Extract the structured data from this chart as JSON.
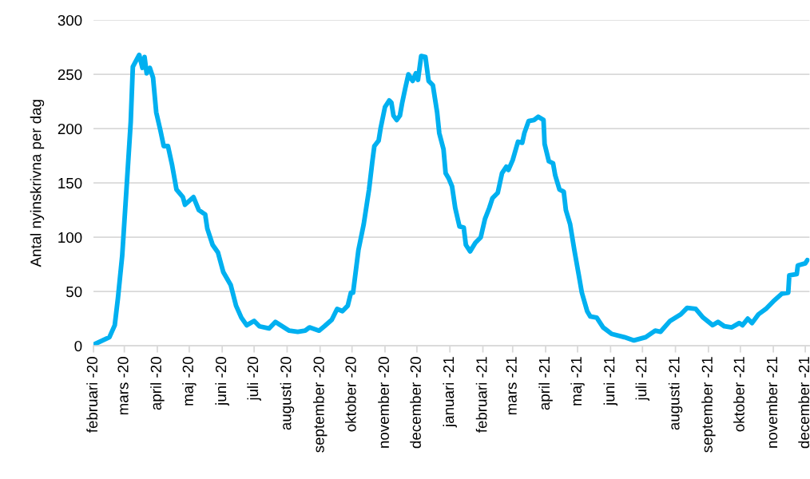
{
  "chart_data": {
    "type": "line",
    "ylabel": "Antal nyinskrivna per dag",
    "x": [
      "2020-02-01",
      "2020-02-16",
      "2020-02-21",
      "2020-02-24",
      "2020-02-28",
      "2020-03-03",
      "2020-03-07",
      "2020-03-09",
      "2020-03-15",
      "2020-03-18",
      "2020-03-20",
      "2020-03-22",
      "2020-03-25",
      "2020-03-28",
      "2020-03-31",
      "2020-04-04",
      "2020-04-07",
      "2020-04-11",
      "2020-04-15",
      "2020-04-19",
      "2020-04-25",
      "2020-04-27",
      "2020-05-05",
      "2020-05-10",
      "2020-05-16",
      "2020-05-18",
      "2020-05-23",
      "2020-05-28",
      "2020-06-02",
      "2020-06-09",
      "2020-06-14",
      "2020-06-19",
      "2020-06-24",
      "2020-07-01",
      "2020-07-06",
      "2020-07-15",
      "2020-07-21",
      "2020-08-03",
      "2020-08-11",
      "2020-08-18",
      "2020-08-22",
      "2020-08-31",
      "2020-09-05",
      "2020-09-12",
      "2020-09-17",
      "2020-09-22",
      "2020-09-27",
      "2020-09-30",
      "2020-10-02",
      "2020-10-07",
      "2020-10-12",
      "2020-10-17",
      "2020-10-20",
      "2020-10-22",
      "2020-10-26",
      "2020-10-28",
      "2020-11-01",
      "2020-11-05",
      "2020-11-07",
      "2020-11-09",
      "2020-11-12",
      "2020-11-15",
      "2020-11-17",
      "2020-11-20",
      "2020-11-23",
      "2020-11-27",
      "2020-11-30",
      "2020-12-02",
      "2020-12-05",
      "2020-12-09",
      "2020-12-12",
      "2020-12-16",
      "2020-12-20",
      "2020-12-22",
      "2020-12-26",
      "2020-12-28",
      "2020-12-31",
      "2021-01-03",
      "2021-01-06",
      "2021-01-10",
      "2021-01-14",
      "2021-01-16",
      "2021-01-20",
      "2021-01-25",
      "2021-01-30",
      "2021-02-03",
      "2021-02-07",
      "2021-02-10",
      "2021-02-15",
      "2021-02-19",
      "2021-02-23",
      "2021-02-25",
      "2021-03-01",
      "2021-03-06",
      "2021-03-10",
      "2021-03-12",
      "2021-03-16",
      "2021-03-21",
      "2021-03-25",
      "2021-03-30",
      "2021-03-31",
      "2021-04-04",
      "2021-04-08",
      "2021-04-10",
      "2021-04-14",
      "2021-04-18",
      "2021-04-20",
      "2021-04-24",
      "2021-04-28",
      "2021-05-02",
      "2021-05-05",
      "2021-05-10",
      "2021-05-13",
      "2021-05-19",
      "2021-05-25",
      "2021-06-02",
      "2021-06-14",
      "2021-06-23",
      "2021-07-04",
      "2021-07-13",
      "2021-07-18",
      "2021-07-27",
      "2021-08-06",
      "2021-08-12",
      "2021-08-20",
      "2021-08-27",
      "2021-09-05",
      "2021-09-10",
      "2021-09-16",
      "2021-09-23",
      "2021-09-30",
      "2021-10-03",
      "2021-10-08",
      "2021-10-12",
      "2021-10-18",
      "2021-10-25",
      "2021-11-01",
      "2021-11-09",
      "2021-11-15",
      "2021-11-16",
      "2021-11-23",
      "2021-11-24",
      "2021-12-01",
      "2021-12-03"
    ],
    "series": [
      {
        "color": "#00b0f0",
        "values": [
          1,
          8,
          19,
          44,
          83,
          144,
          206,
          257,
          268,
          256,
          266,
          251,
          256,
          247,
          215,
          198,
          184,
          184,
          166,
          144,
          137,
          130,
          137,
          125,
          121,
          108,
          93,
          86,
          68,
          56,
          37,
          26,
          19,
          23,
          18,
          16,
          22,
          14,
          13,
          14,
          17,
          14,
          18,
          24,
          34,
          32,
          37,
          49,
          49,
          88,
          112,
          144,
          169,
          184,
          189,
          201,
          220,
          226,
          224,
          212,
          208,
          212,
          223,
          237,
          250,
          244,
          251,
          245,
          267,
          266,
          244,
          240,
          215,
          196,
          181,
          159,
          154,
          147,
          127,
          110,
          109,
          93,
          87,
          95,
          100,
          117,
          127,
          136,
          141,
          159,
          165,
          162,
          171,
          188,
          187,
          196,
          207,
          208,
          211,
          208,
          186,
          170,
          168,
          157,
          144,
          142,
          125,
          112,
          88,
          66,
          49,
          32,
          27,
          26,
          17,
          11,
          8,
          5,
          8,
          14,
          13,
          23,
          29,
          35,
          34,
          26,
          19,
          22,
          18,
          17,
          21,
          19,
          25,
          21,
          29,
          34,
          41,
          48,
          49,
          65,
          66,
          74,
          76,
          79
        ]
      }
    ],
    "xlim": [
      "2020-02-01",
      "2021-12-05"
    ],
    "xticks": [
      {
        "value": "2020-02-01",
        "label": "februari -20"
      },
      {
        "value": "2020-03-01",
        "label": "mars -20"
      },
      {
        "value": "2020-04-01",
        "label": "april -20"
      },
      {
        "value": "2020-05-01",
        "label": "maj -20"
      },
      {
        "value": "2020-06-01",
        "label": "juni -20"
      },
      {
        "value": "2020-07-01",
        "label": "juli -20"
      },
      {
        "value": "2020-08-01",
        "label": "augusti -20"
      },
      {
        "value": "2020-09-01",
        "label": "september -20"
      },
      {
        "value": "2020-10-01",
        "label": "oktober -20"
      },
      {
        "value": "2020-11-01",
        "label": "november -20"
      },
      {
        "value": "2020-12-01",
        "label": "december -20"
      },
      {
        "value": "2021-01-01",
        "label": "januari -21"
      },
      {
        "value": "2021-02-01",
        "label": "februari -21"
      },
      {
        "value": "2021-03-01",
        "label": "mars -21"
      },
      {
        "value": "2021-04-01",
        "label": "april -21"
      },
      {
        "value": "2021-05-01",
        "label": "maj -21"
      },
      {
        "value": "2021-06-01",
        "label": "juni -21"
      },
      {
        "value": "2021-07-01",
        "label": "juli -21"
      },
      {
        "value": "2021-08-01",
        "label": "augusti -21"
      },
      {
        "value": "2021-09-01",
        "label": "september -21"
      },
      {
        "value": "2021-10-01",
        "label": "oktober -21"
      },
      {
        "value": "2021-11-01",
        "label": "november -21"
      },
      {
        "value": "2021-12-01",
        "label": "december -21"
      }
    ],
    "ylim": [
      0,
      300
    ],
    "yticks": [
      0,
      50,
      100,
      150,
      200,
      250,
      300
    ],
    "grid": "y",
    "legend": false,
    "line_style": "solid",
    "marker": "none"
  }
}
